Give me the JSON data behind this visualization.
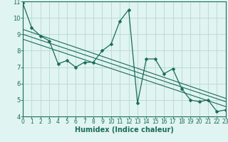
{
  "x": [
    0,
    1,
    2,
    3,
    4,
    5,
    6,
    7,
    8,
    9,
    10,
    11,
    12,
    13,
    14,
    15,
    16,
    17,
    18,
    19,
    20,
    21,
    22,
    23
  ],
  "y": [
    10.9,
    9.4,
    8.9,
    8.6,
    7.2,
    7.4,
    7.0,
    7.3,
    7.3,
    8.0,
    8.4,
    9.8,
    10.5,
    4.8,
    7.5,
    7.5,
    6.6,
    6.9,
    5.7,
    5.0,
    4.9,
    5.0,
    4.3,
    4.4
  ],
  "trend_lines": [
    {
      "x0": 0,
      "y0": 9.3,
      "x1": 23,
      "y1": 5.1
    },
    {
      "x0": 0,
      "y0": 9.0,
      "x1": 23,
      "y1": 4.9
    },
    {
      "x0": 0,
      "y0": 8.7,
      "x1": 23,
      "y1": 4.6
    }
  ],
  "line_color": "#1a6b5a",
  "bg_color": "#e0f4f1",
  "grid_color": "#b8d8d4",
  "xlabel": "Humidex (Indice chaleur)",
  "xlim": [
    0,
    23
  ],
  "ylim": [
    4,
    11
  ],
  "yticks": [
    4,
    5,
    6,
    7,
    8,
    9,
    10,
    11
  ],
  "xticks": [
    0,
    1,
    2,
    3,
    4,
    5,
    6,
    7,
    8,
    9,
    10,
    11,
    12,
    13,
    14,
    15,
    16,
    17,
    18,
    19,
    20,
    21,
    22,
    23
  ],
  "tick_fontsize": 5.5,
  "xlabel_fontsize": 7,
  "marker_size": 2.5,
  "line_width": 1.0
}
